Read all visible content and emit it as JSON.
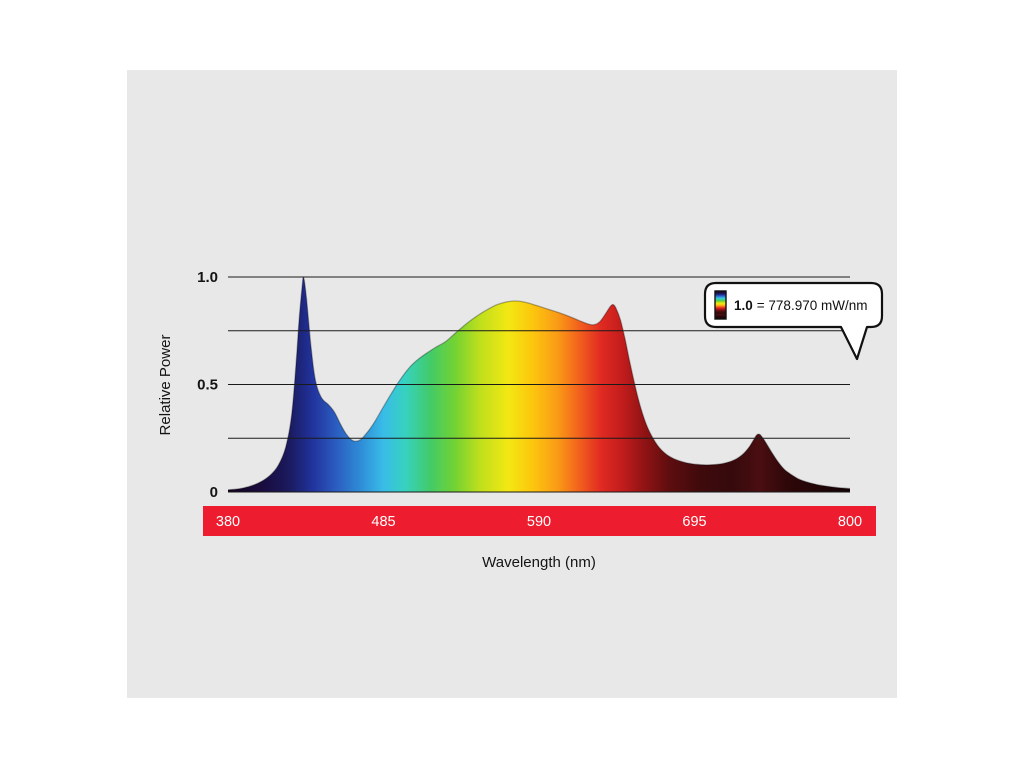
{
  "page": {
    "background": "#ffffff",
    "panel_color": "#e8e8e8"
  },
  "chart_data": {
    "type": "area",
    "title": "",
    "xlabel": "Wavelength (nm)",
    "ylabel": "Relative Power",
    "x_range": [
      380,
      800
    ],
    "y_range": [
      0,
      1.0
    ],
    "x_ticks": [
      "380",
      "485",
      "590",
      "695",
      "800"
    ],
    "y_ticks": [
      {
        "value": 1.0,
        "label": "1.0"
      },
      {
        "value": 0.5,
        "label": "0.5"
      },
      {
        "value": 0.0,
        "label": "0"
      }
    ],
    "gridline_values": [
      0,
      0.25,
      0.5,
      0.75,
      1.0
    ],
    "grid": "horizontal-on",
    "legend_position": "top-right-callout",
    "axis_bar_color": "#ed1c2e",
    "callout": {
      "bold_text": "1.0",
      "text": "= 778.970 mW/nm",
      "full_text": "1.0 = 778.970 mW/nm",
      "icon": "spectrum-strip-icon"
    },
    "series": [
      {
        "name": "relative-spectral-power",
        "points": [
          [
            380,
            0.01
          ],
          [
            390,
            0.018
          ],
          [
            400,
            0.04
          ],
          [
            408,
            0.075
          ],
          [
            414,
            0.125
          ],
          [
            419,
            0.21
          ],
          [
            423,
            0.36
          ],
          [
            426,
            0.6
          ],
          [
            428,
            0.8
          ],
          [
            430,
            0.95
          ],
          [
            431,
            1.0
          ],
          [
            433,
            0.9
          ],
          [
            436,
            0.68
          ],
          [
            439,
            0.52
          ],
          [
            443,
            0.44
          ],
          [
            448,
            0.405
          ],
          [
            452,
            0.37
          ],
          [
            456,
            0.315
          ],
          [
            460,
            0.268
          ],
          [
            464,
            0.24
          ],
          [
            468,
            0.238
          ],
          [
            472,
            0.26
          ],
          [
            478,
            0.315
          ],
          [
            484,
            0.385
          ],
          [
            490,
            0.455
          ],
          [
            496,
            0.52
          ],
          [
            502,
            0.575
          ],
          [
            508,
            0.615
          ],
          [
            514,
            0.645
          ],
          [
            520,
            0.672
          ],
          [
            527,
            0.7
          ],
          [
            534,
            0.742
          ],
          [
            541,
            0.783
          ],
          [
            548,
            0.818
          ],
          [
            555,
            0.848
          ],
          [
            562,
            0.872
          ],
          [
            569,
            0.885
          ],
          [
            576,
            0.888
          ],
          [
            582,
            0.88
          ],
          [
            588,
            0.868
          ],
          [
            594,
            0.855
          ],
          [
            600,
            0.842
          ],
          [
            606,
            0.828
          ],
          [
            612,
            0.812
          ],
          [
            618,
            0.795
          ],
          [
            623,
            0.782
          ],
          [
            627,
            0.778
          ],
          [
            631,
            0.792
          ],
          [
            635,
            0.83
          ],
          [
            638,
            0.862
          ],
          [
            640,
            0.872
          ],
          [
            642,
            0.855
          ],
          [
            645,
            0.8
          ],
          [
            648,
            0.715
          ],
          [
            651,
            0.615
          ],
          [
            655,
            0.49
          ],
          [
            659,
            0.385
          ],
          [
            663,
            0.305
          ],
          [
            667,
            0.25
          ],
          [
            671,
            0.208
          ],
          [
            676,
            0.175
          ],
          [
            681,
            0.155
          ],
          [
            687,
            0.14
          ],
          [
            693,
            0.131
          ],
          [
            699,
            0.127
          ],
          [
            705,
            0.126
          ],
          [
            711,
            0.129
          ],
          [
            717,
            0.137
          ],
          [
            723,
            0.153
          ],
          [
            728,
            0.178
          ],
          [
            732,
            0.21
          ],
          [
            735,
            0.243
          ],
          [
            737,
            0.265
          ],
          [
            739,
            0.268
          ],
          [
            741,
            0.252
          ],
          [
            744,
            0.22
          ],
          [
            748,
            0.175
          ],
          [
            752,
            0.135
          ],
          [
            756,
            0.103
          ],
          [
            761,
            0.078
          ],
          [
            766,
            0.058
          ],
          [
            772,
            0.044
          ],
          [
            778,
            0.034
          ],
          [
            785,
            0.026
          ],
          [
            792,
            0.02
          ],
          [
            800,
            0.016
          ]
        ]
      }
    ],
    "gradient_stops": [
      {
        "offset": 0.0,
        "color": "#150320"
      },
      {
        "offset": 0.055,
        "color": "#190c3e"
      },
      {
        "offset": 0.1,
        "color": "#1b1b60"
      },
      {
        "offset": 0.135,
        "color": "#21329b"
      },
      {
        "offset": 0.175,
        "color": "#2b5ec1"
      },
      {
        "offset": 0.215,
        "color": "#2f8fd8"
      },
      {
        "offset": 0.25,
        "color": "#38bce8"
      },
      {
        "offset": 0.285,
        "color": "#37d2c0"
      },
      {
        "offset": 0.325,
        "color": "#41cb69"
      },
      {
        "offset": 0.365,
        "color": "#73d232"
      },
      {
        "offset": 0.405,
        "color": "#bfdf1d"
      },
      {
        "offset": 0.45,
        "color": "#f2e812"
      },
      {
        "offset": 0.49,
        "color": "#fcc60e"
      },
      {
        "offset": 0.53,
        "color": "#fa9b16"
      },
      {
        "offset": 0.565,
        "color": "#f2601d"
      },
      {
        "offset": 0.6,
        "color": "#e02a22"
      },
      {
        "offset": 0.635,
        "color": "#c11c1c"
      },
      {
        "offset": 0.67,
        "color": "#8f1314"
      },
      {
        "offset": 0.71,
        "color": "#5e0d0f"
      },
      {
        "offset": 0.76,
        "color": "#3f0a0c"
      },
      {
        "offset": 0.81,
        "color": "#350a0c"
      },
      {
        "offset": 0.855,
        "color": "#4a0e11"
      },
      {
        "offset": 0.9,
        "color": "#2e0709"
      },
      {
        "offset": 1.0,
        "color": "#140305"
      }
    ]
  }
}
